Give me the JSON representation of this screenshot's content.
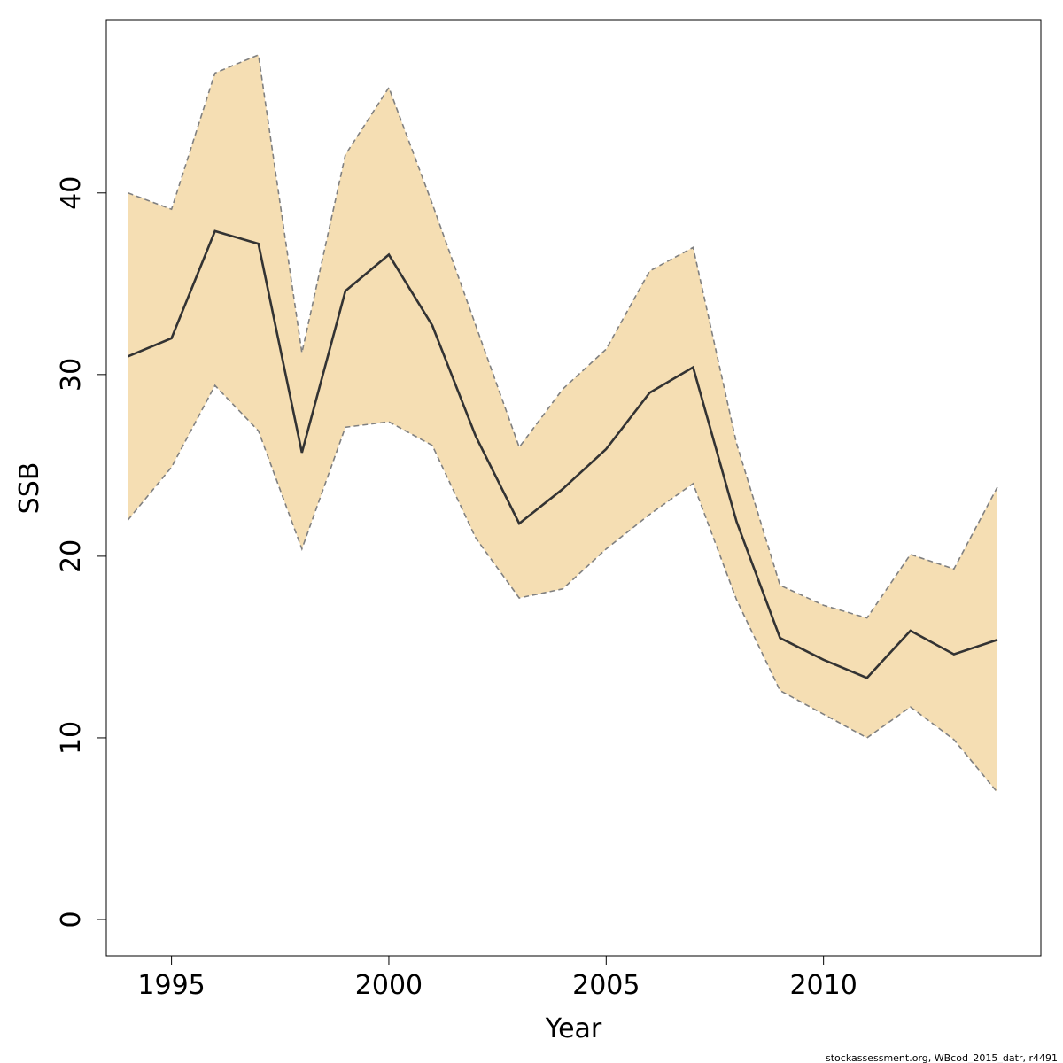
{
  "chart_data": {
    "type": "area",
    "xlabel": "Year",
    "ylabel": "SSB",
    "xlim": [
      1993.5,
      2015.0
    ],
    "ylim": [
      -2,
      49.5
    ],
    "x_ticks": [
      1995,
      2000,
      2005,
      2010
    ],
    "y_ticks": [
      0,
      10,
      20,
      30,
      40
    ],
    "grid": false,
    "legend": "none",
    "x": [
      1994,
      1995,
      1996,
      1997,
      1998,
      1999,
      2000,
      2001,
      2002,
      2003,
      2004,
      2005,
      2006,
      2007,
      2008,
      2009,
      2010,
      2011,
      2012,
      2013,
      2014
    ],
    "series": [
      {
        "role": "estimate",
        "values": [
          31.0,
          32.0,
          37.9,
          37.2,
          25.7,
          34.6,
          36.6,
          32.7,
          26.6,
          21.8,
          23.7,
          25.9,
          29.0,
          30.4,
          21.9,
          15.5,
          14.3,
          13.3,
          15.9,
          14.6,
          15.4
        ]
      },
      {
        "role": "upper",
        "values": [
          40.0,
          39.1,
          46.6,
          47.6,
          31.2,
          42.1,
          45.8,
          39.4,
          32.7,
          26.0,
          29.2,
          31.4,
          35.7,
          37.0,
          26.2,
          18.4,
          17.3,
          16.6,
          20.1,
          19.3,
          23.8
        ]
      },
      {
        "role": "lower",
        "values": [
          22.0,
          24.9,
          29.4,
          26.9,
          20.4,
          27.1,
          27.4,
          26.1,
          21.0,
          17.7,
          18.2,
          20.4,
          22.3,
          24.0,
          17.6,
          12.6,
          11.3,
          10.0,
          11.7,
          9.9,
          7.0
        ]
      }
    ],
    "colors": {
      "band_fill": "#f5deb3",
      "band_edge": "#808080",
      "line": "#333333",
      "axis": "#000000"
    }
  },
  "footnote": "stockassessment.org, WBcod_2015_datr, r4491"
}
